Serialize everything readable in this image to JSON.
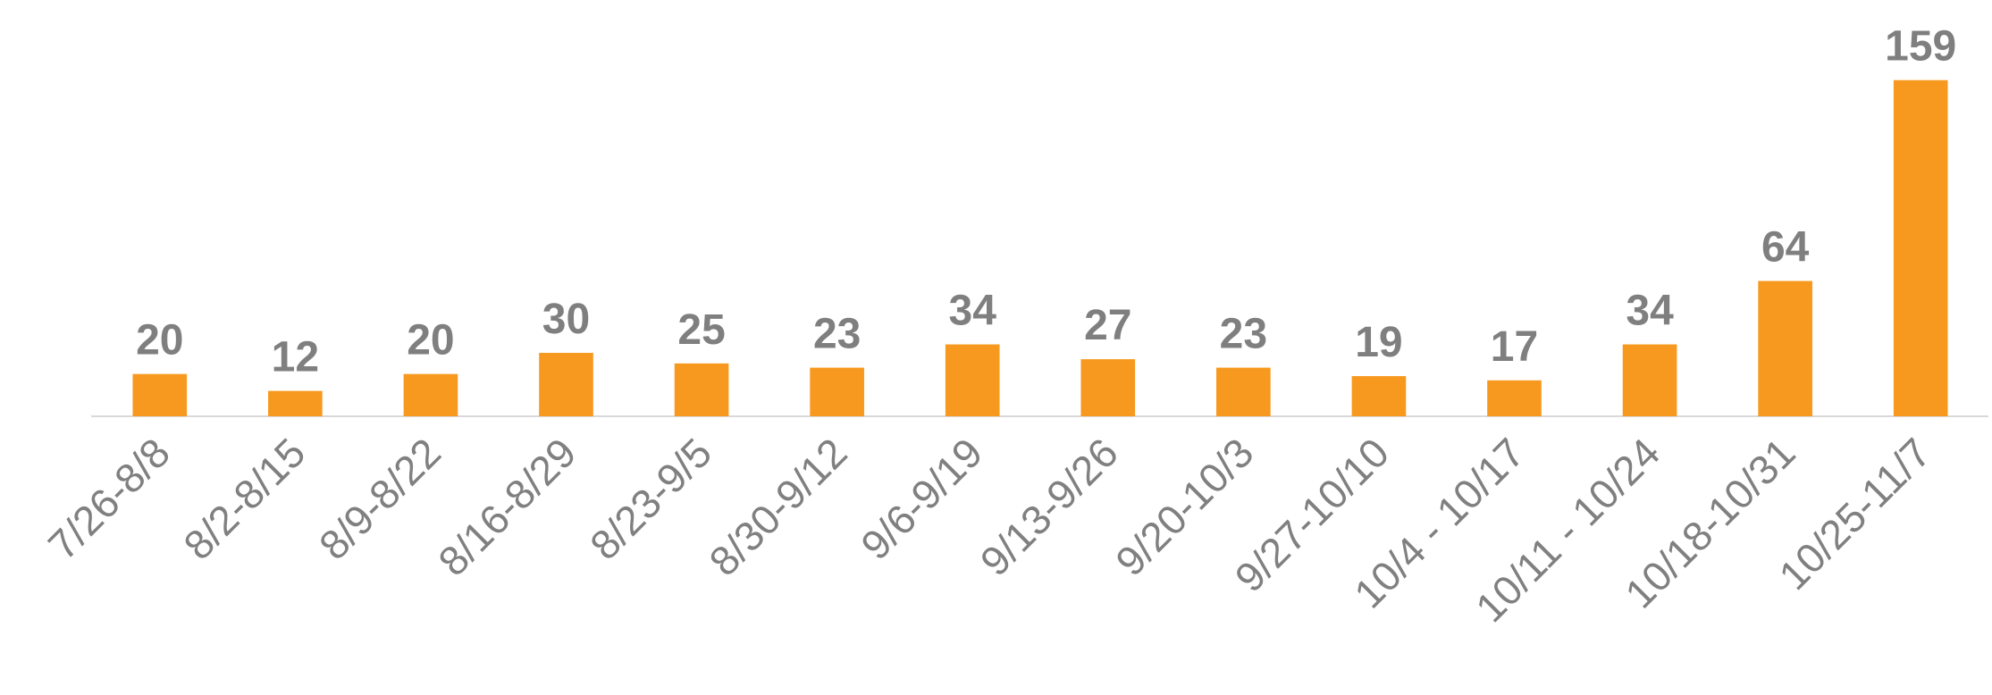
{
  "chart_data": {
    "type": "bar",
    "categories": [
      "7/26-8/8",
      "8/2-8/15",
      "8/9-8/22",
      "8/16-8/29",
      "8/23-9/5",
      "8/30-9/12",
      "9/6-9/19",
      "9/13-9/26",
      "9/20-10/3",
      "9/27-10/10",
      "10/4 - 10/17",
      "10/11 - 10/24",
      "10/18-10/31",
      "10/25-11/7"
    ],
    "values": [
      20,
      12,
      20,
      30,
      25,
      23,
      34,
      27,
      23,
      19,
      17,
      34,
      64,
      159
    ],
    "color": "#f7991e",
    "ylim": [
      0,
      180
    ]
  }
}
